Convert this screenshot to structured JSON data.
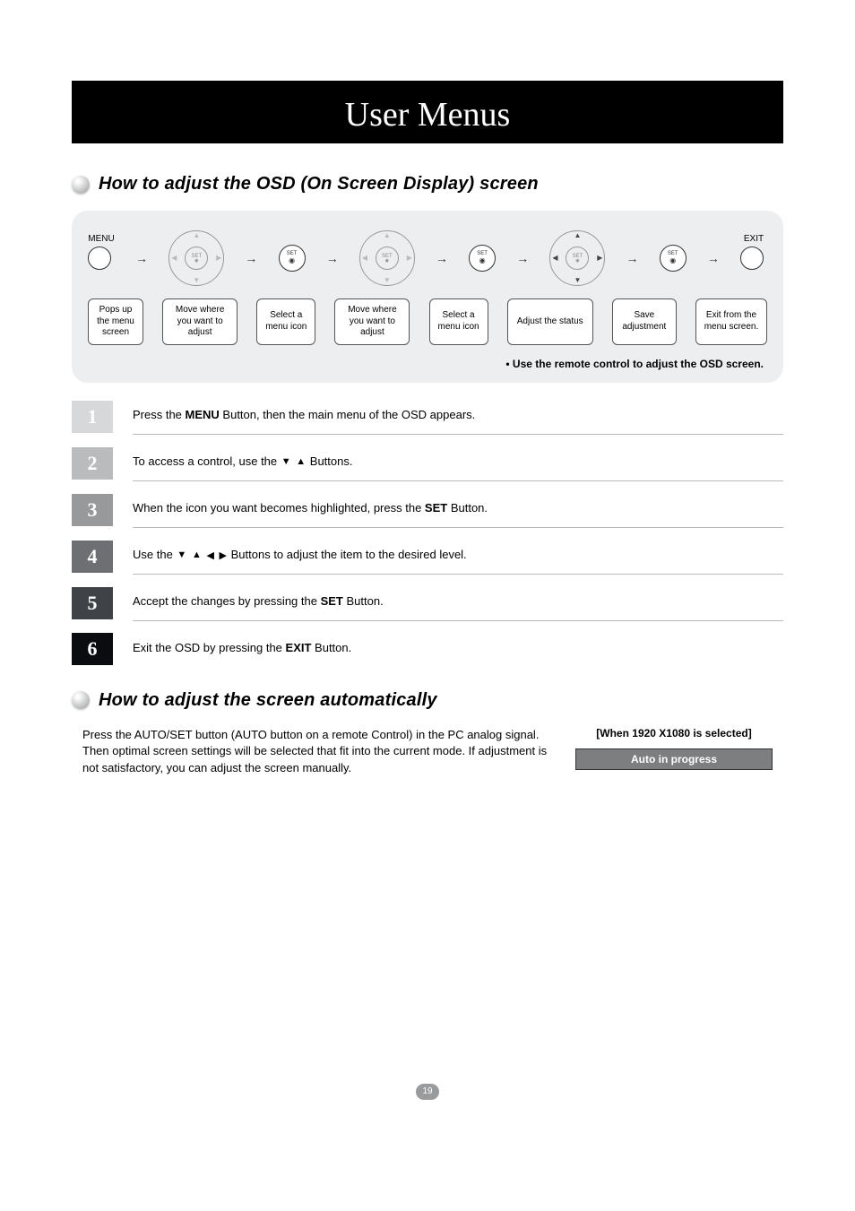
{
  "page_title": "User Menus",
  "page_number": "19",
  "section1": {
    "heading": "How to adjust the OSD (On Screen Display) screen",
    "menu_label": "MENU",
    "exit_label": "EXIT",
    "set_label": "SET",
    "flow_boxes": [
      "Pops up the menu screen",
      "Move where you want to adjust",
      "Select a menu icon",
      "Move where you want to adjust",
      "Select a menu icon",
      "Adjust the status",
      "Save adjustment",
      "Exit from the menu screen."
    ],
    "note": "• Use the remote control to adjust the OSD screen."
  },
  "steps": [
    {
      "num": "1",
      "bg": "#d7d8d9",
      "html": "Press the <b>MENU</b> Button, then the main menu of the OSD appears."
    },
    {
      "num": "2",
      "bg": "#b9bbbc",
      "html": "To access a control, use the <span class='inline-tri'>▼</span> <span class='inline-tri'>▲</span> Buttons."
    },
    {
      "num": "3",
      "bg": "#97999b",
      "html": "When the icon you want becomes highlighted, press the <b>SET</b> Button."
    },
    {
      "num": "4",
      "bg": "#6d6f72",
      "html": "Use the <span class='inline-tri'>▼</span> <span class='inline-tri'>▲</span> <span class='inline-tri'>◀</span> <span class='inline-tri'>▶</span> Buttons to adjust the item to the desired level."
    },
    {
      "num": "5",
      "bg": "#3f4246",
      "html": "Accept the changes by pressing the <b>SET</b> Button."
    },
    {
      "num": "6",
      "bg": "#0a0c10",
      "html": "Exit the OSD by pressing the <b>EXIT</b> Button."
    }
  ],
  "section2": {
    "heading": "How to adjust the screen automatically",
    "body": "Press the AUTO/SET button (AUTO button on a remote Control) in the PC analog signal. Then optimal screen settings will be selected that fit into the current mode. If adjustment is not satisfactory, you can adjust the screen manually.",
    "right_header": "[When 1920 X1080 is selected]",
    "right_box": "Auto in progress"
  },
  "colors": {
    "panel_bg": "#edeeef",
    "auto_box_bg": "#7d7e80"
  }
}
